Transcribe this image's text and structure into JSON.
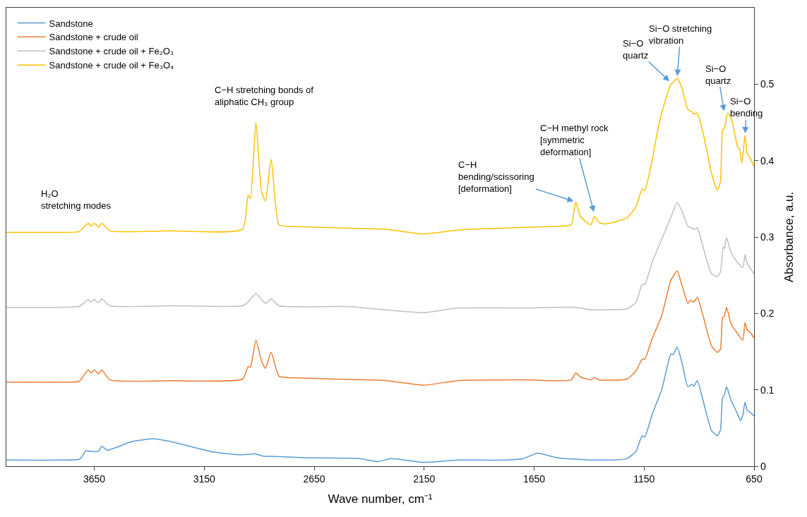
{
  "chart_data": {
    "type": "line",
    "xlabel": "Wave number, cm⁻¹",
    "ylabel": "Absorbance, a.u.",
    "xlim": [
      4050,
      650
    ],
    "xticks": [
      3650,
      3150,
      2650,
      2150,
      1650,
      1150,
      650
    ],
    "ylim": [
      0,
      0.6
    ],
    "yticks": [
      0,
      0.1,
      0.2,
      0.3,
      0.4,
      0.5
    ],
    "legend": "top left",
    "marker": "none",
    "line_style": "solid",
    "series": [
      {
        "name": "Sandstone",
        "color": "#5b9bd5",
        "x": [
          4050,
          3800,
          3720,
          3707,
          3689,
          3650,
          3630,
          3616,
          3591,
          3482,
          3384,
          3299,
          3116,
          2994,
          2915,
          2880,
          2846,
          2689,
          2445,
          2360,
          2300,
          2152,
          2000,
          1800,
          1700,
          1635,
          1545,
          1376,
          1228,
          1186,
          1159,
          1147,
          1112,
          1070,
          1028,
          1018,
          1000,
          979,
          951,
          934,
          923,
          908,
          880,
          844,
          817,
          803,
          793,
          785,
          775,
          754,
          726,
          712,
          701,
          691,
          681,
          670,
          650
        ],
        "values": [
          0.008,
          0.008,
          0.009,
          0.012,
          0.02,
          0.019,
          0.02,
          0.026,
          0.021,
          0.032,
          0.036,
          0.032,
          0.019,
          0.015,
          0.016,
          0.013,
          0.013,
          0.011,
          0.01,
          0.006,
          0.01,
          0.005,
          0.008,
          0.008,
          0.01,
          0.017,
          0.011,
          0.008,
          0.01,
          0.02,
          0.04,
          0.038,
          0.069,
          0.1,
          0.147,
          0.146,
          0.156,
          0.137,
          0.104,
          0.107,
          0.105,
          0.112,
          0.084,
          0.047,
          0.04,
          0.047,
          0.09,
          0.093,
          0.104,
          0.086,
          0.069,
          0.06,
          0.067,
          0.084,
          0.073,
          0.071,
          0.066
        ]
      },
      {
        "name": "Sandstone + crude oil",
        "color": "#ed7d31",
        "x": [
          4050,
          3800,
          3720,
          3700,
          3677,
          3665,
          3650,
          3630,
          3616,
          3579,
          3300,
          2976,
          2951,
          2940,
          2915,
          2890,
          2872,
          2846,
          2811,
          2774,
          2323,
          2152,
          2000,
          1700,
          1482,
          1461,
          1440,
          1392,
          1376,
          1355,
          1228,
          1186,
          1159,
          1147,
          1112,
          1070,
          1028,
          1018,
          1000,
          979,
          951,
          940,
          923,
          908,
          880,
          844,
          817,
          803,
          793,
          785,
          775,
          754,
          726,
          701,
          691,
          681,
          670,
          650
        ],
        "values": [
          0.11,
          0.11,
          0.111,
          0.118,
          0.126,
          0.122,
          0.126,
          0.121,
          0.126,
          0.113,
          0.112,
          0.114,
          0.13,
          0.13,
          0.165,
          0.138,
          0.128,
          0.149,
          0.118,
          0.116,
          0.112,
          0.106,
          0.112,
          0.113,
          0.113,
          0.122,
          0.117,
          0.113,
          0.116,
          0.113,
          0.114,
          0.125,
          0.14,
          0.14,
          0.168,
          0.197,
          0.244,
          0.248,
          0.256,
          0.238,
          0.213,
          0.217,
          0.215,
          0.221,
          0.195,
          0.158,
          0.149,
          0.153,
          0.195,
          0.196,
          0.208,
          0.186,
          0.174,
          0.165,
          0.188,
          0.178,
          0.176,
          0.168
        ]
      },
      {
        "name": "Sandstone + crude oil + Fe₂O₃",
        "color": "#bfbfbf",
        "x": [
          4050,
          3800,
          3720,
          3700,
          3677,
          3665,
          3650,
          3630,
          3616,
          3579,
          3300,
          2976,
          2951,
          2915,
          2872,
          2846,
          2811,
          2500,
          2152,
          2000,
          1700,
          1461,
          1400,
          1228,
          1186,
          1159,
          1147,
          1112,
          1070,
          1028,
          1000,
          979,
          951,
          934,
          923,
          908,
          880,
          844,
          817,
          803,
          790,
          785,
          775,
          754,
          726,
          701,
          691,
          681,
          650
        ],
        "values": [
          0.208,
          0.208,
          0.209,
          0.213,
          0.218,
          0.215,
          0.218,
          0.214,
          0.219,
          0.21,
          0.21,
          0.21,
          0.215,
          0.226,
          0.213,
          0.219,
          0.21,
          0.209,
          0.201,
          0.207,
          0.207,
          0.208,
          0.205,
          0.206,
          0.215,
          0.238,
          0.238,
          0.268,
          0.297,
          0.326,
          0.345,
          0.335,
          0.314,
          0.312,
          0.31,
          0.312,
          0.285,
          0.252,
          0.248,
          0.254,
          0.287,
          0.285,
          0.299,
          0.279,
          0.267,
          0.26,
          0.277,
          0.265,
          0.252
        ]
      },
      {
        "name": "Sandstone + crude oil + Fe₃O₄",
        "color": "#ffc000",
        "x": [
          4050,
          3800,
          3720,
          3700,
          3677,
          3665,
          3650,
          3630,
          3616,
          3579,
          3300,
          2976,
          2951,
          2940,
          2915,
          2890,
          2872,
          2846,
          2811,
          2774,
          2323,
          2152,
          2000,
          1862,
          1545,
          1482,
          1461,
          1440,
          1392,
          1376,
          1355,
          1329,
          1228,
          1186,
          1159,
          1147,
          1112,
          1090,
          1070,
          1028,
          1018,
          1000,
          979,
          951,
          934,
          923,
          908,
          880,
          844,
          817,
          803,
          793,
          785,
          770,
          754,
          726,
          716,
          705,
          691,
          681,
          670,
          650
        ],
        "values": [
          0.306,
          0.306,
          0.307,
          0.312,
          0.318,
          0.314,
          0.318,
          0.313,
          0.318,
          0.308,
          0.308,
          0.31,
          0.355,
          0.35,
          0.45,
          0.36,
          0.347,
          0.402,
          0.316,
          0.314,
          0.31,
          0.304,
          0.309,
          0.311,
          0.314,
          0.316,
          0.346,
          0.327,
          0.316,
          0.327,
          0.319,
          0.317,
          0.325,
          0.34,
          0.363,
          0.361,
          0.402,
          0.437,
          0.462,
          0.5,
          0.502,
          0.508,
          0.496,
          0.467,
          0.464,
          0.461,
          0.462,
          0.434,
          0.384,
          0.361,
          0.372,
          0.44,
          0.442,
          0.462,
          0.456,
          0.419,
          0.415,
          0.397,
          0.433,
          0.409,
          0.405,
          0.392
        ]
      }
    ],
    "annotations": [
      {
        "text": "H₂O\nstretching modes",
        "x": 3700,
        "y": 0.318
      },
      {
        "text": "C−H stretching bonds of\naliphatic CH₃ group",
        "x": 2915,
        "y": 0.45
      },
      {
        "text": "C−H\nbending/scissoring\n[deformation]",
        "x": 1461,
        "y": 0.346
      },
      {
        "text": "C−H methyl rock\n[symmetric\ndeformation]",
        "x": 1376,
        "y": 0.33
      },
      {
        "text": "Si−O\nquartz",
        "x": 1028,
        "y": 0.502
      },
      {
        "text": "Si−O stretching\nvibration",
        "x": 1000,
        "y": 0.508
      },
      {
        "text": "Si−O\nquartz",
        "x": 785,
        "y": 0.462
      },
      {
        "text": "Si−O\nbending",
        "x": 691,
        "y": 0.433
      }
    ]
  }
}
